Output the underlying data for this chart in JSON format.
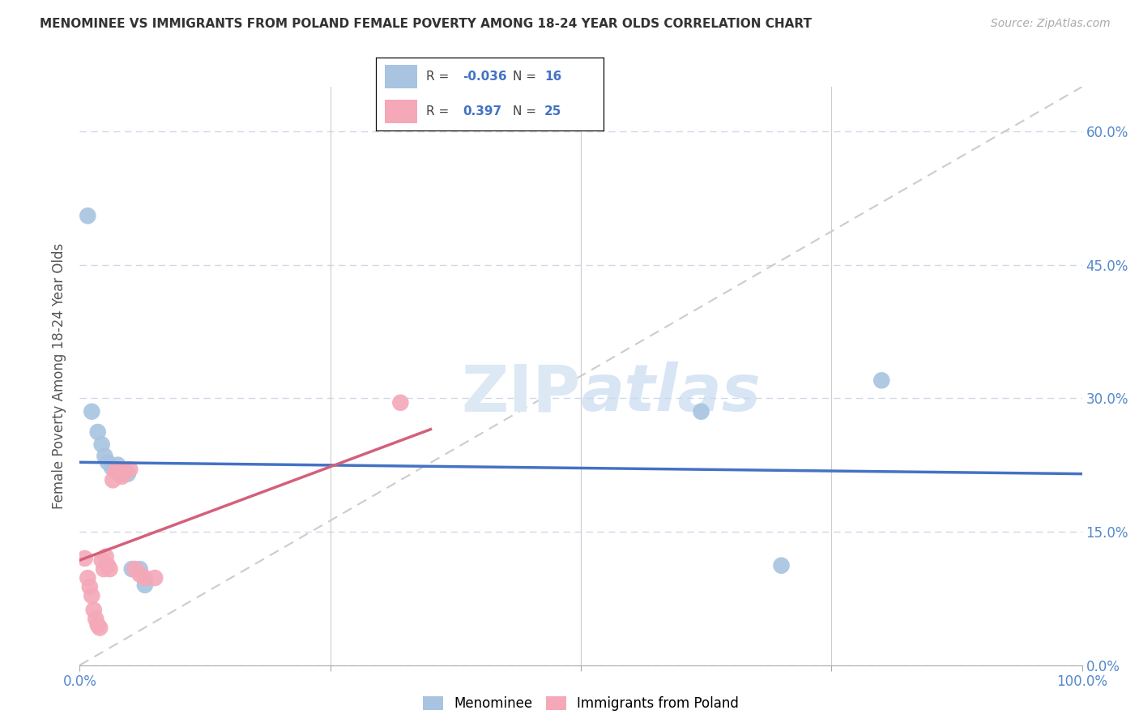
{
  "title": "MENOMINEE VS IMMIGRANTS FROM POLAND FEMALE POVERTY AMONG 18-24 YEAR OLDS CORRELATION CHART",
  "source": "Source: ZipAtlas.com",
  "ylabel": "Female Poverty Among 18-24 Year Olds",
  "xlim": [
    0,
    1.0
  ],
  "ylim": [
    0,
    0.65
  ],
  "yticks": [
    0.0,
    0.15,
    0.3,
    0.45,
    0.6
  ],
  "xticks": [
    0.0,
    0.25,
    0.5,
    0.75,
    1.0
  ],
  "menominee_R": -0.036,
  "menominee_N": 16,
  "poland_R": 0.397,
  "poland_N": 25,
  "menominee_color": "#a8c4e0",
  "poland_color": "#f4a8b8",
  "menominee_line_color": "#4472c4",
  "poland_line_color": "#d4607a",
  "diagonal_color": "#cccccc",
  "grid_color": "#d0d8e8",
  "background_color": "#ffffff",
  "menominee_points_x": [
    0.008,
    0.012,
    0.018,
    0.022,
    0.025,
    0.028,
    0.032,
    0.038,
    0.042,
    0.048,
    0.052,
    0.06,
    0.065,
    0.62,
    0.7,
    0.8
  ],
  "menominee_points_y": [
    0.505,
    0.285,
    0.262,
    0.248,
    0.235,
    0.228,
    0.222,
    0.225,
    0.215,
    0.215,
    0.108,
    0.108,
    0.09,
    0.285,
    0.112,
    0.32
  ],
  "poland_points_x": [
    0.005,
    0.008,
    0.01,
    0.012,
    0.014,
    0.016,
    0.018,
    0.02,
    0.022,
    0.024,
    0.026,
    0.028,
    0.03,
    0.033,
    0.036,
    0.038,
    0.04,
    0.042,
    0.045,
    0.05,
    0.055,
    0.06,
    0.065,
    0.075,
    0.32
  ],
  "poland_points_y": [
    0.12,
    0.098,
    0.088,
    0.078,
    0.062,
    0.052,
    0.045,
    0.042,
    0.118,
    0.108,
    0.122,
    0.112,
    0.108,
    0.208,
    0.218,
    0.22,
    0.215,
    0.212,
    0.218,
    0.22,
    0.108,
    0.102,
    0.098,
    0.098,
    0.295
  ],
  "menominee_trend_x0": 0.0,
  "menominee_trend_y0": 0.228,
  "menominee_trend_x1": 1.0,
  "menominee_trend_y1": 0.215,
  "poland_trend_x0": 0.0,
  "poland_trend_y0": 0.118,
  "poland_trend_x1": 0.35,
  "poland_trend_y1": 0.265
}
